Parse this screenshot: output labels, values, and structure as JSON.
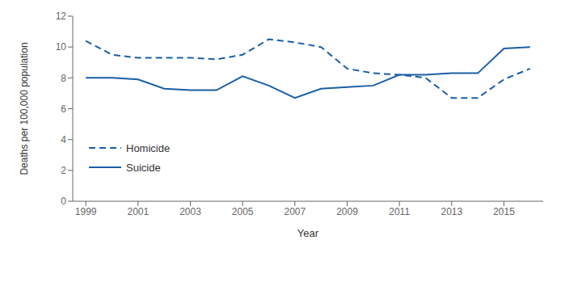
{
  "chart_data": {
    "type": "line",
    "x": [
      1999,
      2000,
      2001,
      2002,
      2003,
      2004,
      2005,
      2006,
      2007,
      2008,
      2009,
      2010,
      2011,
      2012,
      2013,
      2014,
      2015,
      2016
    ],
    "series": [
      {
        "name": "Homicide",
        "color": "#1B5EA6",
        "line_style": "dashed",
        "values": [
          10.4,
          9.5,
          9.3,
          9.3,
          9.3,
          9.2,
          9.5,
          10.5,
          10.3,
          10.0,
          8.6,
          8.3,
          8.2,
          8.0,
          6.7,
          6.7,
          7.9,
          8.6
        ]
      },
      {
        "name": "Suicide",
        "color": "#1B5EA6",
        "line_style": "solid",
        "values": [
          8.0,
          8.0,
          7.9,
          7.3,
          7.2,
          7.2,
          8.1,
          7.5,
          6.7,
          7.3,
          7.4,
          7.5,
          8.2,
          8.2,
          8.3,
          8.3,
          9.9,
          10.0
        ]
      }
    ],
    "xlabel": "Year",
    "ylabel": "Deaths per 100,000 population",
    "xlim": [
      1998.5,
      2016.5
    ],
    "xticks": [
      1999,
      2001,
      2003,
      2005,
      2007,
      2009,
      2011,
      2013,
      2015
    ],
    "ylim": [
      0,
      12
    ],
    "yticks": [
      0,
      2,
      4,
      6,
      8,
      10,
      12
    ],
    "grid": false,
    "legend": "lower left"
  }
}
